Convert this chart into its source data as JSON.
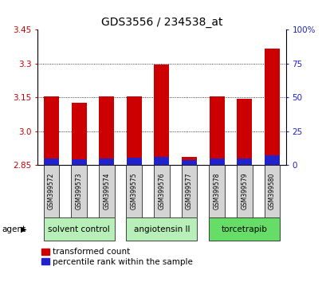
{
  "title": "GDS3556 / 234538_at",
  "samples": [
    "GSM399572",
    "GSM399573",
    "GSM399574",
    "GSM399575",
    "GSM399576",
    "GSM399577",
    "GSM399578",
    "GSM399579",
    "GSM399580"
  ],
  "transformed_count": [
    3.155,
    3.125,
    3.155,
    3.155,
    3.295,
    2.885,
    3.155,
    3.145,
    3.365
  ],
  "percentile_rank": [
    5.0,
    4.0,
    4.5,
    5.5,
    6.0,
    3.5,
    5.0,
    5.0,
    7.0
  ],
  "ymin": 2.85,
  "ymax": 3.45,
  "yticks": [
    2.85,
    3.0,
    3.15,
    3.3,
    3.45
  ],
  "right_yticks": [
    0,
    25,
    50,
    75,
    100
  ],
  "right_yticklabels": [
    "0",
    "25",
    "50",
    "75",
    "100%"
  ],
  "bar_color_red": "#cc0000",
  "bar_color_blue": "#2222cc",
  "groups": [
    {
      "label": "solvent control",
      "indices": [
        0,
        1,
        2
      ],
      "color": "#b8eeb8"
    },
    {
      "label": "angiotensin II",
      "indices": [
        3,
        4,
        5
      ],
      "color": "#b8eeb8"
    },
    {
      "label": "torcetrapib",
      "indices": [
        6,
        7,
        8
      ],
      "color": "#66dd66"
    }
  ],
  "agent_label": "agent",
  "legend_red": "transformed count",
  "legend_blue": "percentile rank within the sample",
  "bar_width": 0.55,
  "left_label_color": "#cc0000",
  "right_label_color": "#2222cc",
  "title_fontsize": 10,
  "tick_fontsize": 7.5,
  "legend_fontsize": 7.5,
  "sample_fontsize": 5.5,
  "group_fontsize": 7.5
}
